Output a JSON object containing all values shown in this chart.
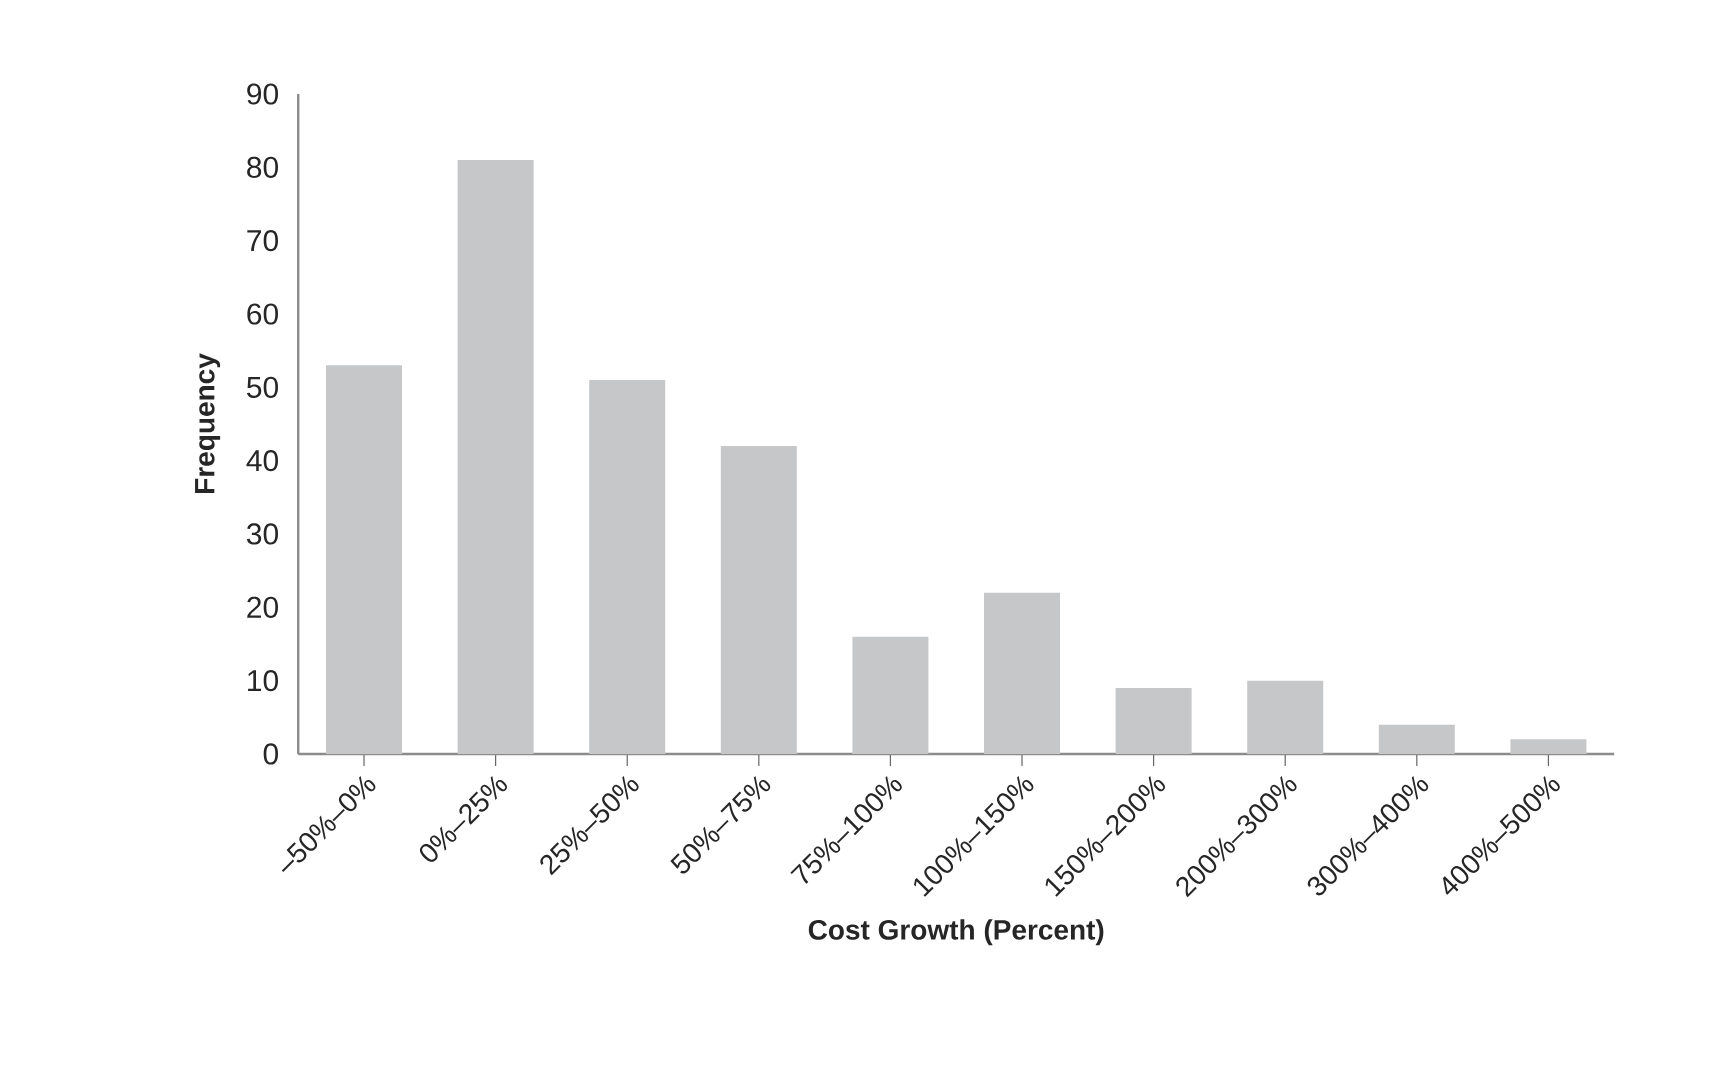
{
  "chart_data": {
    "type": "bar",
    "xlabel": "Cost Growth (Percent)",
    "ylabel": "Frequency",
    "categories": [
      "–50%–0%",
      "0%–25%",
      "25%–50%",
      "50%–75%",
      "75%–100%",
      "100%–150%",
      "150%–200%",
      "200%–300%",
      "300%–400%",
      "400%–500%"
    ],
    "values": [
      53,
      81,
      51,
      42,
      16,
      22,
      9,
      10,
      4,
      2
    ],
    "color": "#c6c7c9",
    "ylim": [
      0,
      90
    ],
    "yticks": [
      0,
      10,
      20,
      30,
      40,
      50,
      60,
      70,
      80,
      90
    ],
    "grid": false
  }
}
